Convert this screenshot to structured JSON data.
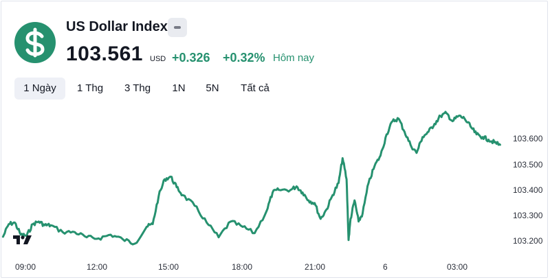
{
  "header": {
    "title": "US Dollar Index",
    "price": "103.561",
    "currency": "USD",
    "change": "+0.326",
    "change_pct": "+0.32%",
    "period_label": "Hôm nay"
  },
  "colors": {
    "accent": "#26916f",
    "text": "#131722",
    "tab_active_bg": "#eef0f6",
    "badge_bg": "#e9ebf0"
  },
  "icons": {
    "logo": "dollar-sign-icon",
    "badge": "minus-icon",
    "watermark": "tradingview-logo-icon"
  },
  "tabs": [
    {
      "label": "1 Ngày",
      "active": true
    },
    {
      "label": "1 Thg",
      "active": false
    },
    {
      "label": "3 Thg",
      "active": false
    },
    {
      "label": "1N",
      "active": false
    },
    {
      "label": "5N",
      "active": false
    },
    {
      "label": "Tất cả",
      "active": false
    }
  ],
  "chart_data": {
    "type": "line",
    "title": "",
    "xlabel": "",
    "ylabel": "",
    "x_ticks": [
      "09:00",
      "12:00",
      "15:00",
      "18:00",
      "21:00",
      "6",
      "03:00"
    ],
    "y_ticks": [
      "103.600",
      "103.500",
      "103.400",
      "103.300",
      "103.200"
    ],
    "ylim": [
      103.17,
      103.69
    ],
    "grid": false,
    "series": [
      {
        "points": [
          [
            "08:00",
            103.212
          ],
          [
            "08:15",
            103.262
          ],
          [
            "08:30",
            103.268
          ],
          [
            "08:45",
            103.222
          ],
          [
            "09:00",
            103.218
          ],
          [
            "09:15",
            103.262
          ],
          [
            "09:30",
            103.272
          ],
          [
            "09:45",
            103.258
          ],
          [
            "10:00",
            103.258
          ],
          [
            "10:30",
            103.232
          ],
          [
            "11:00",
            103.232
          ],
          [
            "11:30",
            103.212
          ],
          [
            "12:00",
            103.208
          ],
          [
            "12:30",
            103.222
          ],
          [
            "13:00",
            103.205
          ],
          [
            "13:30",
            103.188
          ],
          [
            "14:00",
            103.252
          ],
          [
            "14:15",
            103.262
          ],
          [
            "14:30",
            103.368
          ],
          [
            "14:45",
            103.432
          ],
          [
            "15:00",
            103.442
          ],
          [
            "15:15",
            103.402
          ],
          [
            "15:30",
            103.372
          ],
          [
            "16:00",
            103.332
          ],
          [
            "16:30",
            103.268
          ],
          [
            "17:00",
            103.212
          ],
          [
            "17:30",
            103.272
          ],
          [
            "18:00",
            103.252
          ],
          [
            "18:30",
            103.228
          ],
          [
            "19:00",
            103.312
          ],
          [
            "19:15",
            103.382
          ],
          [
            "19:30",
            103.392
          ],
          [
            "20:00",
            103.392
          ],
          [
            "20:15",
            103.405
          ],
          [
            "20:30",
            103.382
          ],
          [
            "20:45",
            103.352
          ],
          [
            "21:00",
            103.342
          ],
          [
            "21:15",
            103.282
          ],
          [
            "21:30",
            103.318
          ],
          [
            "21:45",
            103.372
          ],
          [
            "22:00",
            103.418
          ],
          [
            "22:10",
            103.512
          ],
          [
            "22:20",
            103.432
          ],
          [
            "22:25",
            103.202
          ],
          [
            "22:30",
            103.282
          ],
          [
            "22:40",
            103.352
          ],
          [
            "22:50",
            103.272
          ],
          [
            "23:00",
            103.302
          ],
          [
            "23:15",
            103.418
          ],
          [
            "23:30",
            103.482
          ],
          [
            "23:45",
            103.522
          ],
          [
            "00:00",
            103.602
          ],
          [
            "00:15",
            103.652
          ],
          [
            "00:30",
            103.662
          ],
          [
            "00:45",
            103.612
          ],
          [
            "01:00",
            103.562
          ],
          [
            "01:15",
            103.532
          ],
          [
            "01:30",
            103.592
          ],
          [
            "01:45",
            103.612
          ],
          [
            "02:00",
            103.642
          ],
          [
            "02:15",
            103.672
          ],
          [
            "02:30",
            103.682
          ],
          [
            "02:45",
            103.652
          ],
          [
            "03:00",
            103.672
          ],
          [
            "03:15",
            103.662
          ],
          [
            "03:30",
            103.632
          ],
          [
            "03:45",
            103.602
          ],
          [
            "04:00",
            103.592
          ],
          [
            "04:15",
            103.582
          ],
          [
            "04:30",
            103.572
          ],
          [
            "04:45",
            103.561
          ]
        ]
      }
    ]
  }
}
